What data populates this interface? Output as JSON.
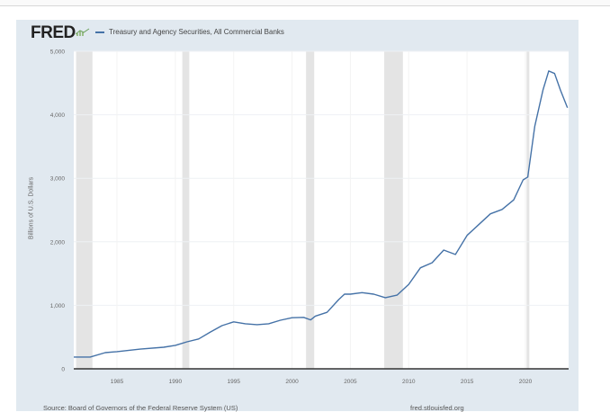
{
  "header": {
    "logo": "FRED",
    "legend_label": "Treasury and Agency Securities, All Commercial Banks",
    "series_color": "#4572a7"
  },
  "footer": {
    "source": "Source: Board of Governors of the Federal Reserve System (US)",
    "url": "fred.stlouisfed.org"
  },
  "chart_data": {
    "type": "line",
    "title": "Treasury and Agency Securities, All Commercial Banks",
    "xlabel": "",
    "ylabel": "Billions of U.S. Dollars",
    "xlim": [
      1981.3,
      2023.7
    ],
    "ylim": [
      0,
      5000
    ],
    "yticks": [
      0,
      1000,
      2000,
      3000,
      4000,
      5000
    ],
    "ytick_labels": [
      "0",
      "1,000",
      "2,000",
      "3,000",
      "4,000",
      "5,000"
    ],
    "xticks": [
      1985,
      1990,
      1995,
      2000,
      2005,
      2010,
      2015,
      2020
    ],
    "xtick_labels": [
      "1985",
      "1990",
      "1995",
      "2000",
      "2005",
      "2010",
      "2015",
      "2020"
    ],
    "grid": true,
    "legend_position": "top-left",
    "recessions": [
      [
        1981.5,
        1982.9
      ],
      [
        1990.6,
        1991.2
      ],
      [
        2001.2,
        2001.9
      ],
      [
        2007.9,
        2009.5
      ],
      [
        2020.1,
        2020.3
      ]
    ],
    "series": [
      {
        "name": "Treasury and Agency Securities, All Commercial Banks",
        "x": [
          1981.3,
          1982.7,
          1984,
          1985,
          1987,
          1989,
          1990,
          1991,
          1992,
          1993,
          1994,
          1995,
          1996,
          1997,
          1998,
          1999,
          2000,
          2001,
          2001.6,
          2002,
          2003,
          2004,
          2004.5,
          2005,
          2006,
          2007,
          2008,
          2009,
          2010,
          2011,
          2012,
          2013,
          2014,
          2015,
          2016,
          2017,
          2018,
          2019,
          2019.8,
          2020.2,
          2020.8,
          2021.5,
          2022.0,
          2022.5,
          2023,
          2023.6
        ],
        "values": [
          185,
          185,
          255,
          270,
          310,
          340,
          370,
          425,
          470,
          580,
          680,
          740,
          710,
          695,
          710,
          765,
          805,
          810,
          770,
          830,
          890,
          1090,
          1175,
          1175,
          1200,
          1175,
          1120,
          1160,
          1330,
          1590,
          1670,
          1870,
          1800,
          2100,
          2270,
          2440,
          2510,
          2660,
          2975,
          3020,
          3820,
          4390,
          4690,
          4650,
          4390,
          4110
        ]
      }
    ]
  }
}
